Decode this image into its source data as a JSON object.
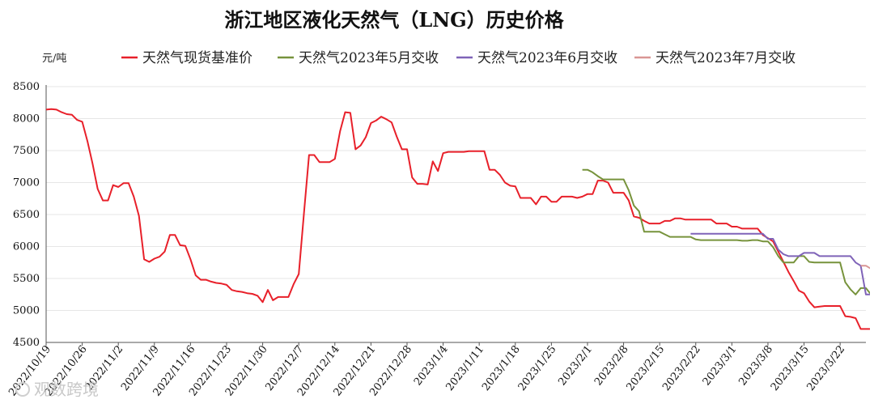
{
  "chart_data": {
    "type": "line",
    "title": "浙江地区液化天然气（LNG）历史价格",
    "ylabel": "元/吨",
    "ylim": [
      4500,
      8500
    ],
    "yticks": [
      "8500",
      "8000",
      "7500",
      "7000",
      "6500",
      "6000",
      "5500",
      "5000",
      "4500"
    ],
    "x_range": [
      "2022-10-19",
      "2023-03-27"
    ],
    "xticks": [
      "2022/10/19",
      "2022/10/26",
      "2022/11/2",
      "2022/11/9",
      "2022/11/16",
      "2022/11/23",
      "2022/11/30",
      "2022/12/7",
      "2022/12/14",
      "2022/12/21",
      "2022/12/28",
      "2023/1/4",
      "2023/1/11",
      "2023/1/18",
      "2023/1/25",
      "2023/2/1",
      "2023/2/8",
      "2023/2/15",
      "2023/2/22",
      "2023/3/1",
      "2023/3/8",
      "2023/3/15",
      "2023/3/22"
    ],
    "grid": "horizontal",
    "legend_position": "top",
    "series": [
      {
        "name": "天然气现货基准价",
        "color": "#e8202a",
        "points": [
          [
            "2022-10-19",
            8140
          ],
          [
            "2022-10-20",
            8150
          ],
          [
            "2022-10-21",
            8140
          ],
          [
            "2022-10-22",
            8100
          ],
          [
            "2022-10-23",
            8070
          ],
          [
            "2022-10-24",
            8060
          ],
          [
            "2022-10-25",
            7980
          ],
          [
            "2022-10-26",
            7950
          ],
          [
            "2022-10-27",
            7650
          ],
          [
            "2022-10-28",
            7300
          ],
          [
            "2022-10-29",
            6900
          ],
          [
            "2022-10-30",
            6720
          ],
          [
            "2022-10-31",
            6720
          ],
          [
            "2022-11-01",
            6960
          ],
          [
            "2022-11-02",
            6930
          ],
          [
            "2022-11-03",
            6990
          ],
          [
            "2022-11-04",
            6990
          ],
          [
            "2022-11-05",
            6780
          ],
          [
            "2022-11-06",
            6480
          ],
          [
            "2022-11-07",
            5800
          ],
          [
            "2022-11-08",
            5760
          ],
          [
            "2022-11-09",
            5810
          ],
          [
            "2022-11-10",
            5840
          ],
          [
            "2022-11-11",
            5920
          ],
          [
            "2022-11-12",
            6180
          ],
          [
            "2022-11-13",
            6180
          ],
          [
            "2022-11-14",
            6020
          ],
          [
            "2022-11-15",
            6010
          ],
          [
            "2022-11-16",
            5800
          ],
          [
            "2022-11-17",
            5550
          ],
          [
            "2022-11-18",
            5480
          ],
          [
            "2022-11-19",
            5480
          ],
          [
            "2022-11-20",
            5450
          ],
          [
            "2022-11-21",
            5430
          ],
          [
            "2022-11-22",
            5420
          ],
          [
            "2022-11-23",
            5400
          ],
          [
            "2022-11-24",
            5320
          ],
          [
            "2022-11-25",
            5300
          ],
          [
            "2022-11-26",
            5290
          ],
          [
            "2022-11-27",
            5270
          ],
          [
            "2022-11-28",
            5260
          ],
          [
            "2022-11-29",
            5230
          ],
          [
            "2022-11-30",
            5130
          ],
          [
            "2022-12-01",
            5320
          ],
          [
            "2022-12-02",
            5160
          ],
          [
            "2022-12-03",
            5210
          ],
          [
            "2022-12-04",
            5210
          ],
          [
            "2022-12-05",
            5210
          ],
          [
            "2022-12-06",
            5410
          ],
          [
            "2022-12-07",
            5570
          ],
          [
            "2022-12-08",
            6520
          ],
          [
            "2022-12-09",
            7430
          ],
          [
            "2022-12-10",
            7430
          ],
          [
            "2022-12-11",
            7320
          ],
          [
            "2022-12-12",
            7320
          ],
          [
            "2022-12-13",
            7320
          ],
          [
            "2022-12-14",
            7370
          ],
          [
            "2022-12-15",
            7800
          ],
          [
            "2022-12-16",
            8100
          ],
          [
            "2022-12-17",
            8090
          ],
          [
            "2022-12-18",
            7520
          ],
          [
            "2022-12-19",
            7580
          ],
          [
            "2022-12-20",
            7710
          ],
          [
            "2022-12-21",
            7930
          ],
          [
            "2022-12-22",
            7970
          ],
          [
            "2022-12-23",
            8030
          ],
          [
            "2022-12-24",
            7990
          ],
          [
            "2022-12-25",
            7940
          ],
          [
            "2022-12-26",
            7720
          ],
          [
            "2022-12-27",
            7520
          ],
          [
            "2022-12-28",
            7520
          ],
          [
            "2022-12-29",
            7080
          ],
          [
            "2022-12-30",
            6980
          ],
          [
            "2022-12-31",
            6980
          ],
          [
            "2023-01-01",
            6970
          ],
          [
            "2023-01-02",
            7330
          ],
          [
            "2023-01-03",
            7180
          ],
          [
            "2023-01-04",
            7460
          ],
          [
            "2023-01-05",
            7480
          ],
          [
            "2023-01-06",
            7480
          ],
          [
            "2023-01-07",
            7480
          ],
          [
            "2023-01-08",
            7480
          ],
          [
            "2023-01-09",
            7490
          ],
          [
            "2023-01-10",
            7490
          ],
          [
            "2023-01-11",
            7490
          ],
          [
            "2023-01-12",
            7490
          ],
          [
            "2023-01-13",
            7200
          ],
          [
            "2023-01-14",
            7200
          ],
          [
            "2023-01-15",
            7120
          ],
          [
            "2023-01-16",
            7000
          ],
          [
            "2023-01-17",
            6950
          ],
          [
            "2023-01-18",
            6940
          ],
          [
            "2023-01-19",
            6760
          ],
          [
            "2023-01-20",
            6760
          ],
          [
            "2023-01-21",
            6760
          ],
          [
            "2023-01-22",
            6660
          ],
          [
            "2023-01-23",
            6780
          ],
          [
            "2023-01-24",
            6780
          ],
          [
            "2023-01-25",
            6700
          ],
          [
            "2023-01-26",
            6700
          ],
          [
            "2023-01-27",
            6780
          ],
          [
            "2023-01-28",
            6780
          ],
          [
            "2023-01-29",
            6780
          ],
          [
            "2023-01-30",
            6760
          ],
          [
            "2023-01-31",
            6780
          ],
          [
            "2023-02-01",
            6820
          ],
          [
            "2023-02-02",
            6820
          ],
          [
            "2023-02-03",
            7030
          ],
          [
            "2023-02-04",
            7030
          ],
          [
            "2023-02-05",
            7000
          ],
          [
            "2023-02-06",
            6840
          ],
          [
            "2023-02-07",
            6840
          ],
          [
            "2023-02-08",
            6840
          ],
          [
            "2023-02-09",
            6720
          ],
          [
            "2023-02-10",
            6470
          ],
          [
            "2023-02-11",
            6450
          ],
          [
            "2023-02-12",
            6400
          ],
          [
            "2023-02-13",
            6360
          ],
          [
            "2023-02-14",
            6360
          ],
          [
            "2023-02-15",
            6360
          ],
          [
            "2023-02-16",
            6400
          ],
          [
            "2023-02-17",
            6400
          ],
          [
            "2023-02-18",
            6440
          ],
          [
            "2023-02-19",
            6440
          ],
          [
            "2023-02-20",
            6420
          ],
          [
            "2023-02-21",
            6420
          ],
          [
            "2023-02-22",
            6420
          ],
          [
            "2023-02-23",
            6420
          ],
          [
            "2023-02-24",
            6420
          ],
          [
            "2023-02-25",
            6420
          ],
          [
            "2023-02-26",
            6360
          ],
          [
            "2023-02-27",
            6360
          ],
          [
            "2023-02-28",
            6360
          ],
          [
            "2023-03-01",
            6310
          ],
          [
            "2023-03-02",
            6310
          ],
          [
            "2023-03-03",
            6280
          ],
          [
            "2023-03-04",
            6280
          ],
          [
            "2023-03-05",
            6280
          ],
          [
            "2023-03-06",
            6280
          ],
          [
            "2023-03-07",
            6180
          ],
          [
            "2023-03-08",
            6130
          ],
          [
            "2023-03-09",
            6080
          ],
          [
            "2023-03-10",
            5920
          ],
          [
            "2023-03-11",
            5760
          ],
          [
            "2023-03-12",
            5600
          ],
          [
            "2023-03-13",
            5460
          ],
          [
            "2023-03-14",
            5310
          ],
          [
            "2023-03-15",
            5270
          ],
          [
            "2023-03-16",
            5140
          ],
          [
            "2023-03-17",
            5050
          ],
          [
            "2023-03-18",
            5060
          ],
          [
            "2023-03-19",
            5070
          ],
          [
            "2023-03-20",
            5070
          ],
          [
            "2023-03-21",
            5070
          ],
          [
            "2023-03-22",
            5070
          ],
          [
            "2023-03-23",
            4910
          ],
          [
            "2023-03-24",
            4900
          ],
          [
            "2023-03-25",
            4880
          ],
          [
            "2023-03-26",
            4710
          ],
          [
            "2023-03-27",
            4710
          ],
          [
            "2023-03-28",
            4710
          ],
          [
            "2023-03-29",
            4690
          ]
        ]
      },
      {
        "name": "天然气2023年5月交收",
        "color": "#77933c",
        "points": [
          [
            "2023-01-31",
            7200
          ],
          [
            "2023-02-01",
            7200
          ],
          [
            "2023-02-02",
            7160
          ],
          [
            "2023-02-03",
            7100
          ],
          [
            "2023-02-04",
            7050
          ],
          [
            "2023-02-05",
            7050
          ],
          [
            "2023-02-06",
            7050
          ],
          [
            "2023-02-07",
            7050
          ],
          [
            "2023-02-08",
            7050
          ],
          [
            "2023-02-09",
            6880
          ],
          [
            "2023-02-10",
            6640
          ],
          [
            "2023-02-11",
            6550
          ],
          [
            "2023-02-12",
            6230
          ],
          [
            "2023-02-13",
            6230
          ],
          [
            "2023-02-14",
            6230
          ],
          [
            "2023-02-15",
            6230
          ],
          [
            "2023-02-16",
            6190
          ],
          [
            "2023-02-17",
            6150
          ],
          [
            "2023-02-18",
            6150
          ],
          [
            "2023-02-19",
            6150
          ],
          [
            "2023-02-20",
            6150
          ],
          [
            "2023-02-21",
            6150
          ],
          [
            "2023-02-22",
            6110
          ],
          [
            "2023-02-23",
            6100
          ],
          [
            "2023-02-24",
            6100
          ],
          [
            "2023-02-25",
            6100
          ],
          [
            "2023-02-26",
            6100
          ],
          [
            "2023-02-27",
            6100
          ],
          [
            "2023-02-28",
            6100
          ],
          [
            "2023-03-01",
            6100
          ],
          [
            "2023-03-02",
            6100
          ],
          [
            "2023-03-03",
            6090
          ],
          [
            "2023-03-04",
            6090
          ],
          [
            "2023-03-05",
            6100
          ],
          [
            "2023-03-06",
            6100
          ],
          [
            "2023-03-07",
            6080
          ],
          [
            "2023-03-08",
            6080
          ],
          [
            "2023-03-09",
            5990
          ],
          [
            "2023-03-10",
            5850
          ],
          [
            "2023-03-11",
            5750
          ],
          [
            "2023-03-12",
            5750
          ],
          [
            "2023-03-13",
            5750
          ],
          [
            "2023-03-14",
            5850
          ],
          [
            "2023-03-15",
            5850
          ],
          [
            "2023-03-16",
            5760
          ],
          [
            "2023-03-17",
            5750
          ],
          [
            "2023-03-18",
            5750
          ],
          [
            "2023-03-19",
            5750
          ],
          [
            "2023-03-20",
            5750
          ],
          [
            "2023-03-21",
            5750
          ],
          [
            "2023-03-22",
            5750
          ],
          [
            "2023-03-23",
            5440
          ],
          [
            "2023-03-24",
            5330
          ],
          [
            "2023-03-25",
            5250
          ],
          [
            "2023-03-26",
            5350
          ],
          [
            "2023-03-27",
            5350
          ],
          [
            "2023-03-28",
            5250
          ],
          [
            "2023-03-29",
            5250
          ]
        ]
      },
      {
        "name": "天然气2023年6月交收",
        "color": "#7f63b8",
        "points": [
          [
            "2023-02-21",
            6200
          ],
          [
            "2023-02-22",
            6200
          ],
          [
            "2023-02-23",
            6200
          ],
          [
            "2023-02-24",
            6200
          ],
          [
            "2023-02-25",
            6200
          ],
          [
            "2023-02-26",
            6200
          ],
          [
            "2023-02-27",
            6200
          ],
          [
            "2023-02-28",
            6200
          ],
          [
            "2023-03-01",
            6200
          ],
          [
            "2023-03-02",
            6200
          ],
          [
            "2023-03-03",
            6200
          ],
          [
            "2023-03-04",
            6200
          ],
          [
            "2023-03-05",
            6200
          ],
          [
            "2023-03-06",
            6200
          ],
          [
            "2023-03-07",
            6200
          ],
          [
            "2023-03-08",
            6120
          ],
          [
            "2023-03-09",
            6120
          ],
          [
            "2023-03-10",
            5950
          ],
          [
            "2023-03-11",
            5880
          ],
          [
            "2023-03-12",
            5850
          ],
          [
            "2023-03-13",
            5850
          ],
          [
            "2023-03-14",
            5850
          ],
          [
            "2023-03-15",
            5900
          ],
          [
            "2023-03-16",
            5900
          ],
          [
            "2023-03-17",
            5900
          ],
          [
            "2023-03-18",
            5850
          ],
          [
            "2023-03-19",
            5850
          ],
          [
            "2023-03-20",
            5850
          ],
          [
            "2023-03-21",
            5850
          ],
          [
            "2023-03-22",
            5850
          ],
          [
            "2023-03-23",
            5850
          ],
          [
            "2023-03-24",
            5850
          ],
          [
            "2023-03-25",
            5750
          ],
          [
            "2023-03-26",
            5700
          ],
          [
            "2023-03-27",
            5250
          ],
          [
            "2023-03-28",
            5250
          ],
          [
            "2023-03-29",
            5250
          ]
        ]
      },
      {
        "name": "天然气2023年7月交收",
        "color": "#d99694",
        "points": [
          [
            "2023-03-26",
            5700
          ],
          [
            "2023-03-27",
            5700
          ],
          [
            "2023-03-28",
            5650
          ],
          [
            "2023-03-29",
            5650
          ]
        ]
      }
    ]
  },
  "watermark": "观数跨境"
}
